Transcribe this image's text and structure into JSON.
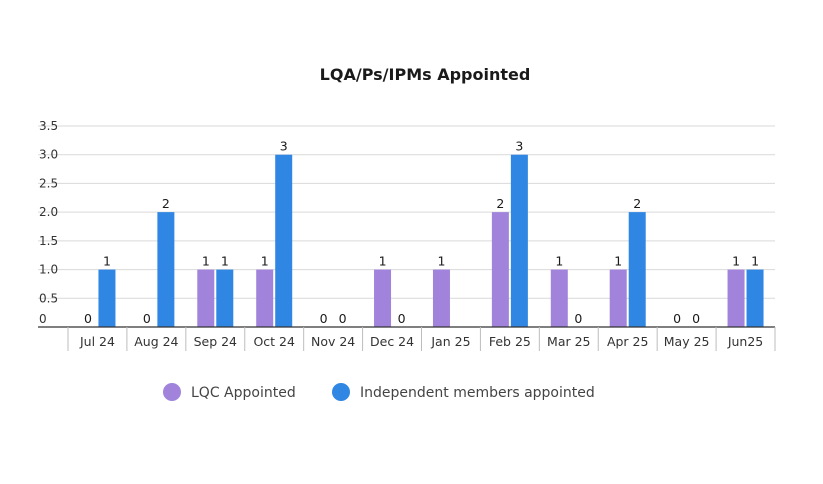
{
  "chart_data": {
    "type": "bar",
    "title": "LQA/Ps/IPMs Appointed",
    "xlabel": "",
    "ylabel": "",
    "categories": [
      "Jul 24",
      "Aug 24",
      "Sep 24",
      "Oct 24",
      "Nov 24",
      "Dec 24",
      "Jan 25",
      "Feb 25",
      "Mar 25",
      "Apr 25",
      "May 25",
      "Jun25"
    ],
    "series": [
      {
        "name": "LQC Appointed",
        "color": "#a183dc",
        "values": [
          0,
          0,
          1,
          1,
          0,
          1,
          1,
          2,
          1,
          1,
          0,
          1
        ],
        "labels": [
          "0",
          "0",
          "1",
          "1",
          "0",
          "1",
          "1",
          "2",
          "1",
          "1",
          "0",
          "1"
        ]
      },
      {
        "name": "Independent members appointed",
        "color": "#2f86e3",
        "values": [
          1,
          2,
          1,
          3,
          0,
          0,
          null,
          3,
          0,
          2,
          0,
          1
        ],
        "labels": [
          "1",
          "2",
          "1",
          "3",
          "0",
          "0",
          null,
          "3",
          "0",
          "2",
          "0",
          "1"
        ]
      }
    ],
    "ylim": [
      0,
      3.5
    ],
    "yticks": [
      "0",
      "0.5",
      "1.0",
      "1.5",
      "2.0",
      "2.5",
      "3.0",
      "3.5"
    ],
    "grid": true,
    "legend_position": "bottom"
  }
}
